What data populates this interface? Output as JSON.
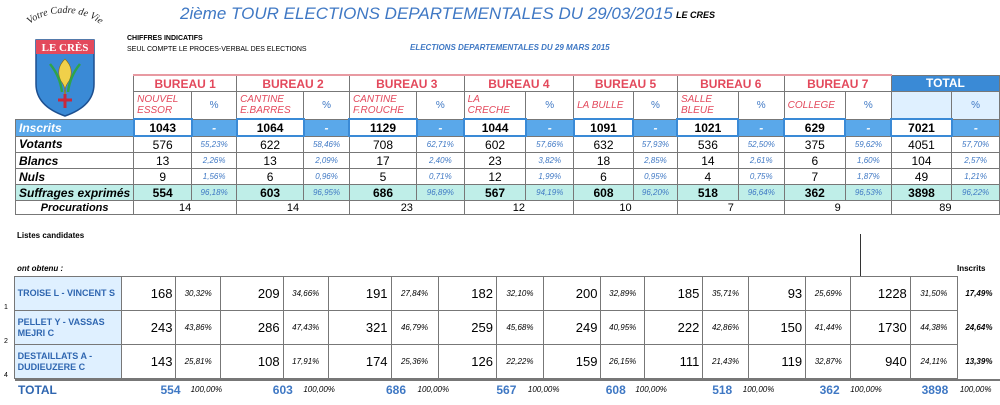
{
  "header": {
    "title": "2ième TOUR ELECTIONS DEPARTEMENTALES DU 29/03/2015",
    "town": "LE CRES",
    "note1": "CHIFFRES INDICATIFS",
    "note2": "SEUL COMPTE LE PROCES-VERBAL DES ELECTIONS",
    "subtitle": "ELECTIONS DEPARTEMENTALES DU 29 MARS 2015"
  },
  "logo": {
    "motto": "Votre Cadre de Vie",
    "name": "LE CRÈS"
  },
  "colors": {
    "accent": "#3a8ad6",
    "red": "#e3495c",
    "teal": "#bfeee8"
  },
  "bureaus": [
    {
      "name": "BUREAU 1",
      "place": "NOUVEL ESSOR"
    },
    {
      "name": "BUREAU 2",
      "place": "CANTINE E.BARRES"
    },
    {
      "name": "BUREAU 3",
      "place": "CANTINE F.ROUCHE"
    },
    {
      "name": "BUREAU 4",
      "place": "LA CRECHE"
    },
    {
      "name": "BUREAU 5",
      "place": "LA BULLE"
    },
    {
      "name": "BUREAU 6",
      "place": "SALLE BLEUE"
    },
    {
      "name": "BUREAU 7",
      "place": "COLLEGE"
    }
  ],
  "total_label": "TOTAL",
  "pct_symbol": "%",
  "dash": "-",
  "rows": {
    "inscrits": {
      "label": "Inscrits",
      "values": [
        "1043",
        "1064",
        "1129",
        "1044",
        "1091",
        "1021",
        "629",
        "7021"
      ]
    },
    "votants": {
      "label": "Votants",
      "values": [
        "576",
        "622",
        "708",
        "602",
        "632",
        "536",
        "375",
        "4051"
      ],
      "pcts": [
        "55,23%",
        "58,46%",
        "62,71%",
        "57,66%",
        "57,93%",
        "52,50%",
        "59,62%",
        "57,70%"
      ]
    },
    "blancs": {
      "label": "Blancs",
      "values": [
        "13",
        "13",
        "17",
        "23",
        "18",
        "14",
        "6",
        "104"
      ],
      "pcts": [
        "2,26%",
        "2,09%",
        "2,40%",
        "3,82%",
        "2,85%",
        "2,61%",
        "1,60%",
        "2,57%"
      ]
    },
    "nuls": {
      "label": "Nuls",
      "values": [
        "9",
        "6",
        "5",
        "12",
        "6",
        "4",
        "7",
        "49"
      ],
      "pcts": [
        "1,56%",
        "0,96%",
        "0,71%",
        "1,99%",
        "0,95%",
        "0,75%",
        "1,87%",
        "1,21%"
      ]
    },
    "suffrages": {
      "label": "Suffrages exprimés",
      "values": [
        "554",
        "603",
        "686",
        "567",
        "608",
        "518",
        "362",
        "3898"
      ],
      "pcts": [
        "96,18%",
        "96,95%",
        "96,89%",
        "94,19%",
        "96,20%",
        "96,64%",
        "96,53%",
        "96,22%"
      ]
    },
    "procurations": {
      "label": "Procurations",
      "values": [
        "14",
        "14",
        "23",
        "12",
        "10",
        "7",
        "9",
        "89"
      ]
    }
  },
  "listes_label": "Listes candidates",
  "ont_obtenu": "ont obtenu :",
  "inscrits_head": "Inscrits",
  "candidates": [
    {
      "idx": "1",
      "name": "TROISE L - VINCENT S",
      "values": [
        "168",
        "209",
        "191",
        "182",
        "200",
        "185",
        "93",
        "1228"
      ],
      "pcts": [
        "30,32%",
        "34,66%",
        "27,84%",
        "32,10%",
        "32,89%",
        "35,71%",
        "25,69%",
        "31,50%"
      ],
      "ins": "17,49%"
    },
    {
      "idx": "2",
      "name": "PELLET Y - VASSAS MEJRI C",
      "values": [
        "243",
        "286",
        "321",
        "259",
        "249",
        "222",
        "150",
        "1730"
      ],
      "pcts": [
        "43,86%",
        "47,43%",
        "46,79%",
        "45,68%",
        "40,95%",
        "42,86%",
        "41,44%",
        "44,38%"
      ],
      "ins": "24,64%"
    },
    {
      "idx": "4",
      "name": "DESTAILLATS A - DUDIEUZERE C",
      "values": [
        "143",
        "108",
        "174",
        "126",
        "159",
        "111",
        "119",
        "940"
      ],
      "pcts": [
        "25,81%",
        "17,91%",
        "25,36%",
        "22,22%",
        "26,15%",
        "21,43%",
        "32,87%",
        "24,11%"
      ],
      "ins": "13,39%"
    }
  ],
  "total_row": {
    "label": "TOTAL",
    "values": [
      "554",
      "603",
      "686",
      "567",
      "608",
      "518",
      "362",
      "3898"
    ],
    "pct": "100,00%"
  }
}
